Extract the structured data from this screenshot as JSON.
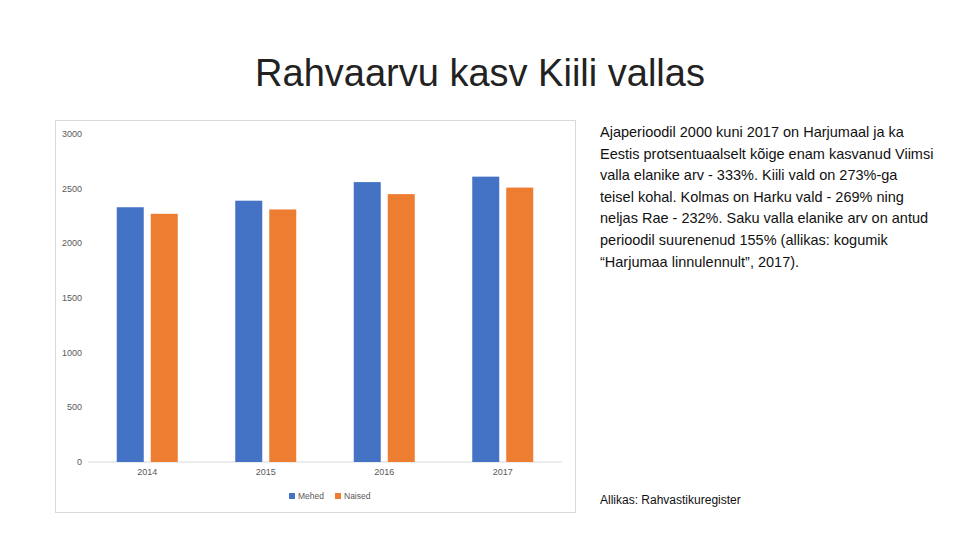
{
  "slide": {
    "title": "Rahvaarvu kasv Kiili vallas",
    "text": "Ajaperioodil 2000 kuni 2017 on Harjumaal ja ka Eestis protsentuaalselt kõige enam kasvanud Viimsi valla elanike arv - 333%. Kiili vald on 273%-ga teisel kohal. Kolmas on Harku vald - 269% ning neljas Rae - 232%. Saku valla elanike arv on antud perioodil suurenenud 155% (allikas: kogumik “Harjumaa linnulennult”, 2017).",
    "source": "Allikas: Rahvastikuregister"
  },
  "chart_data": {
    "type": "bar",
    "categories": [
      "2014",
      "2015",
      "2016",
      "2017"
    ],
    "series": [
      {
        "name": "Mehed",
        "color": "#4472c4",
        "values": [
          2330,
          2390,
          2560,
          2610
        ]
      },
      {
        "name": "Naised",
        "color": "#ed7d31",
        "values": [
          2270,
          2310,
          2450,
          2510
        ]
      }
    ],
    "ylim": [
      0,
      3000
    ],
    "yticks": [
      0,
      500,
      1000,
      1500,
      2000,
      2500,
      3000
    ],
    "grid": false,
    "legend": "bottom"
  }
}
